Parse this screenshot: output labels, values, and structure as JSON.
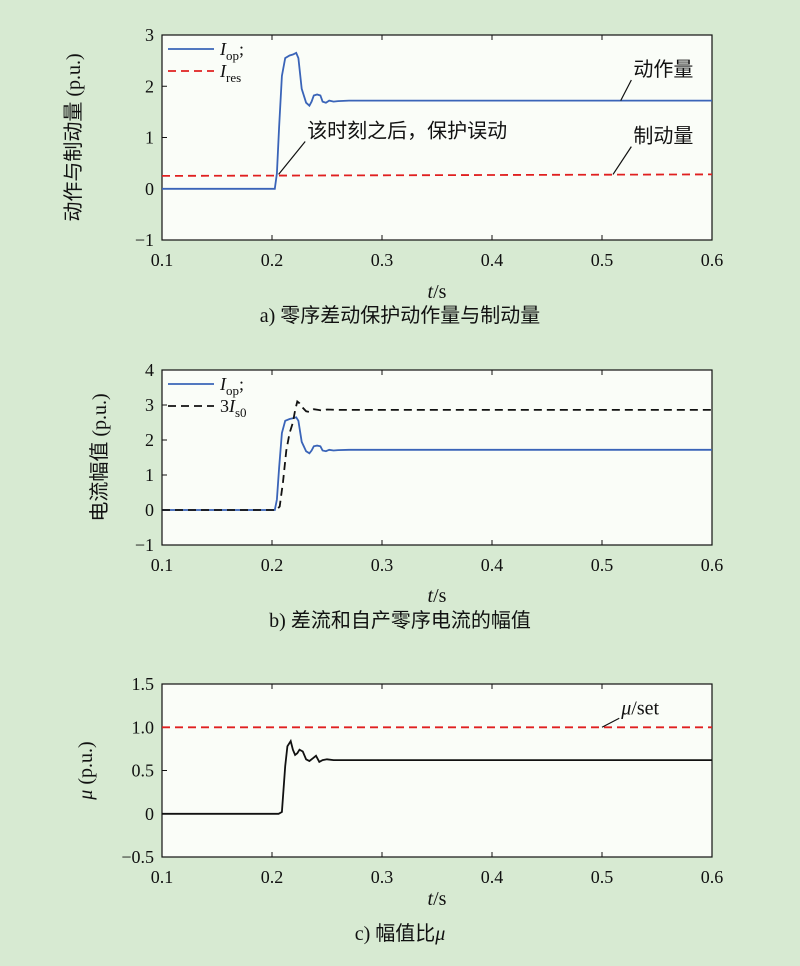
{
  "figure": {
    "background": "#d7ead2",
    "plot_background": "#fafdf8",
    "colors": {
      "blue": "#3a64b8",
      "red": "#e02020",
      "black": "#111111"
    }
  },
  "chart_data": [
    {
      "id": "a",
      "type": "line",
      "caption": "a) 零序差动保护动作量与制动量",
      "xlabel": "t/s",
      "ylabel": "动作与制动量 (p.u.)",
      "xlim": [
        0.1,
        0.6
      ],
      "ylim": [
        -1,
        3
      ],
      "xticks": [
        0.1,
        0.2,
        0.3,
        0.4,
        0.5,
        0.6
      ],
      "xtick_labels": [
        "0.1",
        "0.2",
        "0.3",
        "0.4",
        "0.5",
        "0.6"
      ],
      "yticks": [
        -1,
        0,
        1,
        2,
        3
      ],
      "ytick_labels": [
        "−1",
        "0",
        "1",
        "2",
        "3"
      ],
      "legend_position": "top-left",
      "series": [
        {
          "name": "Iop",
          "legend_main": "I",
          "legend_sub": "op",
          "legend_suffix": ";",
          "color": "#3a64b8",
          "dash": "solid",
          "x": [
            0.1,
            0.2025,
            0.2045,
            0.2065,
            0.209,
            0.212,
            0.216,
            0.219,
            0.222,
            0.224,
            0.227,
            0.231,
            0.234,
            0.236,
            0.238,
            0.241,
            0.244,
            0.246,
            0.249,
            0.252,
            0.256,
            0.26,
            0.27,
            0.3,
            0.6
          ],
          "y": [
            0,
            0,
            0.3,
            1.2,
            2.2,
            2.55,
            2.6,
            2.62,
            2.65,
            2.55,
            1.95,
            1.68,
            1.62,
            1.7,
            1.82,
            1.84,
            1.82,
            1.7,
            1.68,
            1.72,
            1.7,
            1.71,
            1.72,
            1.72,
            1.72
          ]
        },
        {
          "name": "Ires",
          "legend_main": "I",
          "legend_sub": "res",
          "legend_suffix": "",
          "color": "#e02020",
          "dash": "dashed",
          "x": [
            0.1,
            0.6
          ],
          "y": [
            0.25,
            0.28
          ]
        }
      ],
      "annotations": [
        {
          "text": "该时刻之后，保护误动",
          "point": [
            0.206,
            0.28
          ],
          "label_at": [
            0.232,
            1.0
          ]
        },
        {
          "text": "动作量",
          "point": [
            0.517,
            1.72
          ],
          "label_at": [
            0.5285,
            2.2
          ]
        },
        {
          "text": "制动量",
          "point": [
            0.51,
            0.28
          ],
          "label_at": [
            0.5285,
            0.9
          ]
        }
      ]
    },
    {
      "id": "b",
      "type": "line",
      "caption": "b) 差流和自产零序电流的幅值",
      "xlabel": "t/s",
      "ylabel": "电流幅值 (p.u.)",
      "xlim": [
        0.1,
        0.6
      ],
      "ylim": [
        -1,
        4
      ],
      "xticks": [
        0.1,
        0.2,
        0.3,
        0.4,
        0.5,
        0.6
      ],
      "xtick_labels": [
        "0.1",
        "0.2",
        "0.3",
        "0.4",
        "0.5",
        "0.6"
      ],
      "yticks": [
        -1,
        0,
        1,
        2,
        3,
        4
      ],
      "ytick_labels": [
        "−1",
        "0",
        "1",
        "2",
        "3",
        "4"
      ],
      "legend_position": "top-left",
      "series": [
        {
          "name": "Iop",
          "legend_main": "I",
          "legend_sub": "op",
          "legend_suffix": ";",
          "color": "#3a64b8",
          "dash": "solid",
          "x": [
            0.1,
            0.2025,
            0.2045,
            0.2065,
            0.209,
            0.212,
            0.216,
            0.219,
            0.222,
            0.224,
            0.227,
            0.231,
            0.234,
            0.236,
            0.238,
            0.241,
            0.244,
            0.246,
            0.249,
            0.252,
            0.256,
            0.26,
            0.27,
            0.3,
            0.6
          ],
          "y": [
            0,
            0,
            0.3,
            1.2,
            2.2,
            2.55,
            2.6,
            2.62,
            2.65,
            2.55,
            1.95,
            1.68,
            1.62,
            1.7,
            1.82,
            1.84,
            1.82,
            1.7,
            1.68,
            1.72,
            1.7,
            1.71,
            1.72,
            1.72,
            1.72
          ]
        },
        {
          "name": "3Is0",
          "legend_main": "3I",
          "legend_sub": "s0",
          "legend_suffix": "",
          "color": "#111111",
          "dash": "dashed",
          "x": [
            0.1,
            0.204,
            0.207,
            0.21,
            0.213,
            0.216,
            0.219,
            0.221,
            0.223,
            0.225,
            0.228,
            0.231,
            0.234,
            0.238,
            0.242,
            0.246,
            0.25,
            0.26,
            0.6
          ],
          "y": [
            0,
            0,
            0.1,
            0.8,
            1.7,
            2.2,
            2.5,
            2.85,
            3.1,
            3.05,
            2.92,
            2.82,
            2.8,
            2.88,
            2.86,
            2.84,
            2.87,
            2.86,
            2.86
          ]
        }
      ],
      "annotations": []
    },
    {
      "id": "c",
      "type": "line",
      "caption": "c) 幅值比μ",
      "xlabel": "t/s",
      "ylabel": "μ (p.u.)",
      "xlim": [
        0.1,
        0.6
      ],
      "ylim": [
        -0.5,
        1.5
      ],
      "xticks": [
        0.1,
        0.2,
        0.3,
        0.4,
        0.5,
        0.6
      ],
      "xtick_labels": [
        "0.1",
        "0.2",
        "0.3",
        "0.4",
        "0.5",
        "0.6"
      ],
      "yticks": [
        -0.5,
        0,
        0.5,
        1.0,
        1.5
      ],
      "ytick_labels": [
        "−0.5",
        "0",
        "0.5",
        "1.0",
        "1.5"
      ],
      "legend_position": "none",
      "series": [
        {
          "name": "μ",
          "color": "#111111",
          "dash": "solid",
          "x": [
            0.1,
            0.206,
            0.209,
            0.212,
            0.214,
            0.217,
            0.219,
            0.221,
            0.223,
            0.225,
            0.228,
            0.231,
            0.234,
            0.237,
            0.24,
            0.243,
            0.246,
            0.25,
            0.256,
            0.262,
            0.27,
            0.3,
            0.6
          ],
          "y": [
            0,
            0,
            0.02,
            0.55,
            0.78,
            0.84,
            0.74,
            0.68,
            0.7,
            0.74,
            0.72,
            0.63,
            0.61,
            0.64,
            0.67,
            0.6,
            0.62,
            0.63,
            0.62,
            0.62,
            0.62,
            0.62,
            0.62
          ]
        },
        {
          "name": "μset",
          "color": "#e02020",
          "dash": "dashed",
          "x": [
            0.1,
            0.6
          ],
          "y": [
            1.0,
            1.0
          ]
        }
      ],
      "annotations": [
        {
          "text": "μ/set",
          "point": [
            0.5,
            1.0
          ],
          "label_at": [
            0.5175,
            1.15
          ]
        }
      ]
    }
  ]
}
